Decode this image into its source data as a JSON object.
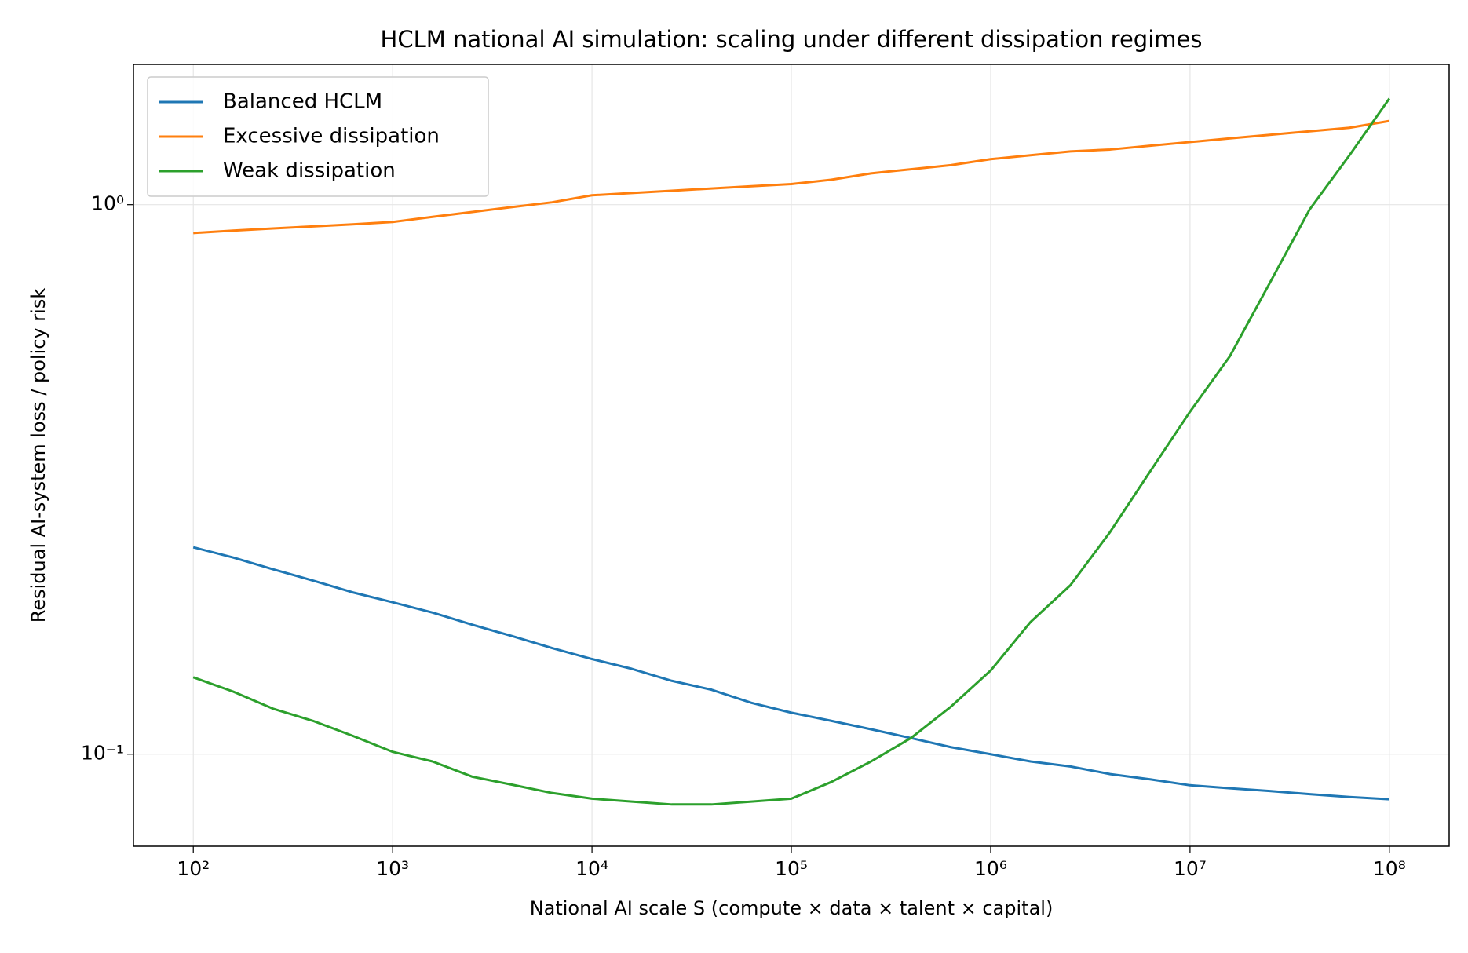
{
  "chart_data": {
    "type": "line",
    "title": "HCLM national AI simulation: scaling under different dissipation regimes",
    "x_label": "National AI scale S (compute × data × talent × capital)",
    "y_label": "Residual AI-system loss / policy risk",
    "x": [
      100,
      158.5,
      251.2,
      398.1,
      631,
      1000,
      1585,
      2512,
      3981,
      6310,
      10000,
      15849,
      25119,
      39811,
      63096,
      100000,
      158489,
      251189,
      398107,
      630957,
      1000000,
      1584893,
      2511886,
      3981072,
      6309573,
      10000000,
      15848932,
      25118864,
      39810717,
      63095734,
      100000000
    ],
    "series": [
      {
        "name": "Balanced HCLM",
        "color": "#1f77b4",
        "values": [
          0.238,
          0.228,
          0.217,
          0.207,
          0.197,
          0.189,
          0.181,
          0.172,
          0.164,
          0.156,
          0.149,
          0.143,
          0.136,
          0.131,
          0.124,
          0.119,
          0.115,
          0.111,
          0.107,
          0.103,
          0.1,
          0.097,
          0.095,
          0.092,
          0.09,
          0.0878,
          0.0867,
          0.0857,
          0.0846,
          0.0836,
          0.0828
        ]
      },
      {
        "name": "Excessive dissipation",
        "color": "#ff7f0e",
        "values": [
          0.888,
          0.897,
          0.905,
          0.913,
          0.921,
          0.93,
          0.95,
          0.97,
          0.99,
          1.01,
          1.04,
          1.05,
          1.06,
          1.07,
          1.08,
          1.09,
          1.11,
          1.14,
          1.16,
          1.18,
          1.21,
          1.23,
          1.25,
          1.26,
          1.28,
          1.3,
          1.32,
          1.34,
          1.36,
          1.38,
          1.42
        ]
      },
      {
        "name": "Weak dissipation",
        "color": "#2ca02c",
        "values": [
          0.138,
          0.13,
          0.121,
          0.115,
          0.108,
          0.101,
          0.097,
          0.091,
          0.088,
          0.085,
          0.083,
          0.082,
          0.081,
          0.081,
          0.082,
          0.083,
          0.089,
          0.097,
          0.107,
          0.122,
          0.142,
          0.174,
          0.203,
          0.254,
          0.327,
          0.42,
          0.53,
          0.72,
          0.98,
          1.23,
          1.56
        ]
      }
    ],
    "x_log": true,
    "y_log": true,
    "xlim": [
      50.1,
      199526231
    ],
    "ylim": [
      0.068,
      1.8
    ],
    "xticks": [
      {
        "value": 100,
        "label": "10²"
      },
      {
        "value": 1000,
        "label": "10³"
      },
      {
        "value": 10000,
        "label": "10⁴"
      },
      {
        "value": 100000,
        "label": "10⁵"
      },
      {
        "value": 1000000,
        "label": "10⁶"
      },
      {
        "value": 10000000,
        "label": "10⁷"
      },
      {
        "value": 100000000,
        "label": "10⁸"
      }
    ],
    "yticks": [
      {
        "value": 0.1,
        "label": "10⁻¹"
      },
      {
        "value": 1,
        "label": "10⁰"
      }
    ],
    "grid": true,
    "legend": "upper left"
  }
}
